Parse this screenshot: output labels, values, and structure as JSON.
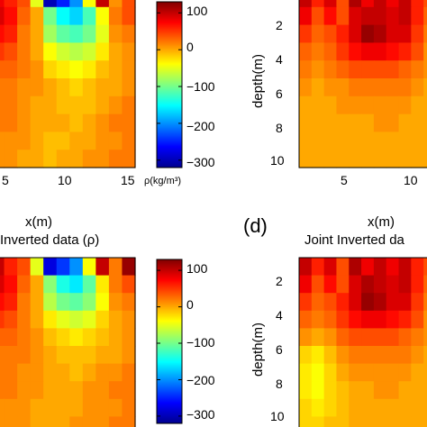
{
  "colormap": [
    "#00008f",
    "#0000ff",
    "#0080ff",
    "#00ffff",
    "#80ff80",
    "#ffff00",
    "#ff8000",
    "#ff0000",
    "#800000"
  ],
  "colorbars": [
    {
      "ticks": [
        {
          "label": "100",
          "value": 100
        },
        {
          "label": "0",
          "value": 0
        },
        {
          "label": "−100",
          "value": -100
        },
        {
          "label": "−200",
          "value": -200
        },
        {
          "label": "−300",
          "value": -300
        }
      ],
      "unit": "ρ(kg/m³)",
      "range": [
        -320,
        130
      ]
    },
    {
      "ticks": [
        {
          "label": "100",
          "value": 100
        },
        {
          "label": "0",
          "value": 0
        },
        {
          "label": "−100",
          "value": -100
        },
        {
          "label": "−200",
          "value": -200
        },
        {
          "label": "−300",
          "value": -300
        }
      ],
      "unit": "",
      "range": [
        -320,
        130
      ]
    }
  ],
  "labels": {
    "top_left_x_ticks": [
      "5",
      "10",
      "15"
    ],
    "top_right_x_ticks": [
      "5",
      "10"
    ],
    "top_right_y_ticks": [
      "2",
      "4",
      "6",
      "8",
      "10"
    ],
    "bottom_right_y_ticks": [
      "2",
      "4",
      "6",
      "8",
      "10"
    ],
    "ylabel": "depth(m)",
    "xlabel": "x(m)",
    "title_c": "Inverted data (ρ)",
    "title_d": "Joint Inverted da",
    "panel_d": "(d)"
  },
  "chart_data": [
    {
      "type": "heatmap",
      "panel": "top-left",
      "xlabel": "",
      "ylabel": "",
      "x_ticks": [
        5,
        10,
        15
      ],
      "grid": false,
      "values": [
        [
          80,
          60,
          40,
          -50,
          -300,
          -250,
          -200,
          -40,
          100,
          10,
          40
        ],
        [
          90,
          70,
          30,
          0,
          -100,
          -150,
          -170,
          -120,
          -40,
          20,
          40
        ],
        [
          70,
          60,
          20,
          0,
          -80,
          -110,
          -120,
          -100,
          -50,
          10,
          20
        ],
        [
          50,
          40,
          20,
          0,
          -40,
          -60,
          -70,
          -60,
          -30,
          0,
          10
        ],
        [
          30,
          30,
          20,
          10,
          -20,
          -30,
          -40,
          -30,
          -10,
          0,
          10
        ],
        [
          20,
          20,
          10,
          10,
          0,
          -10,
          -20,
          -10,
          0,
          0,
          10
        ],
        [
          20,
          20,
          10,
          0,
          0,
          -10,
          -10,
          -10,
          0,
          10,
          20
        ],
        [
          20,
          20,
          10,
          0,
          0,
          0,
          -10,
          0,
          10,
          20,
          20
        ],
        [
          10,
          10,
          10,
          0,
          -10,
          -10,
          0,
          0,
          10,
          10,
          20
        ],
        [
          10,
          10,
          0,
          0,
          -10,
          0,
          0,
          10,
          10,
          20,
          20
        ]
      ]
    },
    {
      "type": "heatmap",
      "panel": "top-right",
      "xlabel": "",
      "ylabel": "depth(m)",
      "x_ticks": [
        5,
        10
      ],
      "y_ticks": [
        2,
        4,
        6,
        8,
        10
      ],
      "grid": false,
      "values": [
        [
          100,
          60,
          90,
          40,
          110,
          80,
          100,
          80,
          100,
          60,
          40
        ],
        [
          80,
          40,
          70,
          40,
          90,
          100,
          100,
          90,
          100,
          60,
          30
        ],
        [
          50,
          30,
          40,
          60,
          90,
          120,
          110,
          90,
          90,
          50,
          20
        ],
        [
          30,
          20,
          30,
          50,
          70,
          80,
          80,
          70,
          60,
          40,
          10
        ],
        [
          20,
          10,
          20,
          30,
          40,
          40,
          40,
          40,
          30,
          20,
          10
        ],
        [
          10,
          0,
          10,
          10,
          20,
          20,
          20,
          20,
          20,
          10,
          0
        ],
        [
          0,
          0,
          0,
          10,
          10,
          10,
          10,
          10,
          10,
          0,
          0
        ],
        [
          0,
          0,
          0,
          0,
          0,
          0,
          10,
          10,
          0,
          0,
          0
        ],
        [
          0,
          0,
          0,
          0,
          0,
          0,
          0,
          0,
          0,
          0,
          0
        ],
        [
          0,
          0,
          0,
          0,
          0,
          0,
          0,
          0,
          0,
          0,
          0
        ]
      ]
    },
    {
      "type": "heatmap",
      "panel": "bottom-left",
      "title": "Inverted data (ρ)",
      "xlabel": "x(m)",
      "ylabel": "",
      "grid": false,
      "values": [
        [
          100,
          60,
          40,
          -50,
          -280,
          -240,
          -200,
          -40,
          100,
          20,
          120
        ],
        [
          90,
          70,
          30,
          0,
          -90,
          -140,
          -160,
          -110,
          -30,
          20,
          40
        ],
        [
          70,
          60,
          20,
          0,
          -70,
          -100,
          -110,
          -90,
          -40,
          10,
          20
        ],
        [
          50,
          40,
          20,
          0,
          -30,
          -50,
          -60,
          -50,
          -20,
          0,
          10
        ],
        [
          30,
          30,
          20,
          10,
          -10,
          -20,
          -30,
          -20,
          -10,
          0,
          10
        ],
        [
          20,
          20,
          20,
          10,
          0,
          -10,
          -10,
          -10,
          0,
          0,
          10
        ],
        [
          20,
          20,
          10,
          10,
          0,
          0,
          -10,
          0,
          10,
          10,
          20
        ],
        [
          20,
          20,
          10,
          10,
          0,
          0,
          0,
          10,
          10,
          20,
          20
        ],
        [
          10,
          10,
          10,
          0,
          0,
          0,
          0,
          10,
          10,
          10,
          20
        ],
        [
          10,
          10,
          10,
          0,
          0,
          0,
          10,
          10,
          10,
          20,
          20
        ]
      ]
    },
    {
      "type": "heatmap",
      "panel": "bottom-right",
      "title": "Joint Inverted da",
      "xlabel": "x(m)",
      "ylabel": "depth(m)",
      "y_ticks": [
        2,
        4,
        6,
        8,
        10
      ],
      "grid": false,
      "values": [
        [
          100,
          60,
          90,
          40,
          110,
          80,
          100,
          80,
          100,
          60,
          40
        ],
        [
          80,
          40,
          70,
          40,
          90,
          110,
          100,
          90,
          100,
          60,
          30
        ],
        [
          50,
          30,
          40,
          60,
          90,
          120,
          110,
          90,
          90,
          50,
          20
        ],
        [
          30,
          20,
          30,
          50,
          70,
          80,
          80,
          70,
          60,
          40,
          10
        ],
        [
          10,
          0,
          10,
          30,
          40,
          40,
          40,
          40,
          30,
          20,
          10
        ],
        [
          -20,
          -30,
          -10,
          10,
          20,
          20,
          20,
          20,
          20,
          10,
          0
        ],
        [
          -30,
          -40,
          -20,
          0,
          10,
          10,
          10,
          10,
          10,
          0,
          0
        ],
        [
          -30,
          -40,
          -20,
          -10,
          0,
          0,
          10,
          10,
          0,
          0,
          0
        ],
        [
          -20,
          -30,
          -20,
          -10,
          0,
          0,
          0,
          0,
          0,
          0,
          0
        ],
        [
          -20,
          -20,
          -10,
          -10,
          0,
          0,
          0,
          0,
          0,
          0,
          0
        ]
      ]
    }
  ]
}
